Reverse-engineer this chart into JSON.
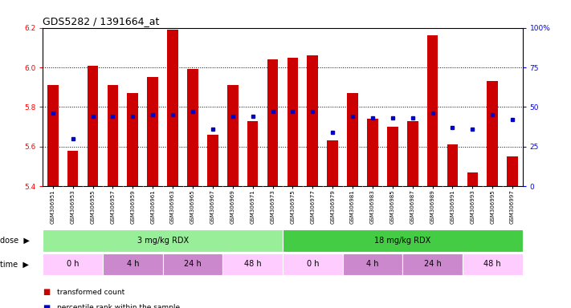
{
  "title": "GDS5282 / 1391664_at",
  "samples": [
    "GSM306951",
    "GSM306953",
    "GSM306955",
    "GSM306957",
    "GSM306959",
    "GSM306961",
    "GSM306963",
    "GSM306965",
    "GSM306967",
    "GSM306969",
    "GSM306971",
    "GSM306973",
    "GSM306975",
    "GSM306977",
    "GSM306979",
    "GSM306981",
    "GSM306983",
    "GSM306985",
    "GSM306987",
    "GSM306989",
    "GSM306991",
    "GSM306993",
    "GSM306995",
    "GSM306997"
  ],
  "bar_values": [
    5.91,
    5.58,
    6.01,
    5.91,
    5.87,
    5.95,
    6.19,
    5.99,
    5.66,
    5.91,
    5.73,
    6.04,
    6.05,
    6.06,
    5.63,
    5.87,
    5.74,
    5.7,
    5.73,
    6.16,
    5.61,
    5.47,
    5.93,
    5.55
  ],
  "percentile_values": [
    46,
    30,
    44,
    44,
    44,
    45,
    45,
    47,
    36,
    44,
    44,
    47,
    47,
    47,
    34,
    44,
    43,
    43,
    43,
    46,
    37,
    36,
    45,
    42
  ],
  "ylim_left": [
    5.4,
    6.2
  ],
  "ylim_right": [
    0,
    100
  ],
  "yticks_left": [
    5.4,
    5.6,
    5.8,
    6.0,
    6.2
  ],
  "yticks_right": [
    0,
    25,
    50,
    75,
    100
  ],
  "bar_color": "#cc0000",
  "dot_color": "#0000cc",
  "bar_bottom": 5.4,
  "dose_groups": [
    {
      "label": "3 mg/kg RDX",
      "start": 0,
      "end": 12,
      "color": "#99ee99"
    },
    {
      "label": "18 mg/kg RDX",
      "start": 12,
      "end": 24,
      "color": "#44cc44"
    }
  ],
  "time_groups": [
    {
      "label": "0 h",
      "start": 0,
      "end": 3,
      "color": "#ffccff"
    },
    {
      "label": "4 h",
      "start": 3,
      "end": 6,
      "color": "#cc88cc"
    },
    {
      "label": "24 h",
      "start": 6,
      "end": 9,
      "color": "#cc88cc"
    },
    {
      "label": "48 h",
      "start": 9,
      "end": 12,
      "color": "#ffccff"
    },
    {
      "label": "0 h",
      "start": 12,
      "end": 15,
      "color": "#ffccff"
    },
    {
      "label": "4 h",
      "start": 15,
      "end": 18,
      "color": "#cc88cc"
    },
    {
      "label": "24 h",
      "start": 18,
      "end": 21,
      "color": "#cc88cc"
    },
    {
      "label": "48 h",
      "start": 21,
      "end": 24,
      "color": "#ffccff"
    }
  ],
  "legend_items": [
    {
      "label": "transformed count",
      "color": "#cc0000"
    },
    {
      "label": "percentile rank within the sample",
      "color": "#0000cc"
    }
  ],
  "background_color": "#ffffff",
  "title_fontsize": 9,
  "tick_fontsize": 6.5,
  "label_fontsize": 7,
  "bar_width": 0.55,
  "grid_yticks": [
    5.6,
    5.8,
    6.0
  ],
  "xticklabel_fontsize": 5.0
}
